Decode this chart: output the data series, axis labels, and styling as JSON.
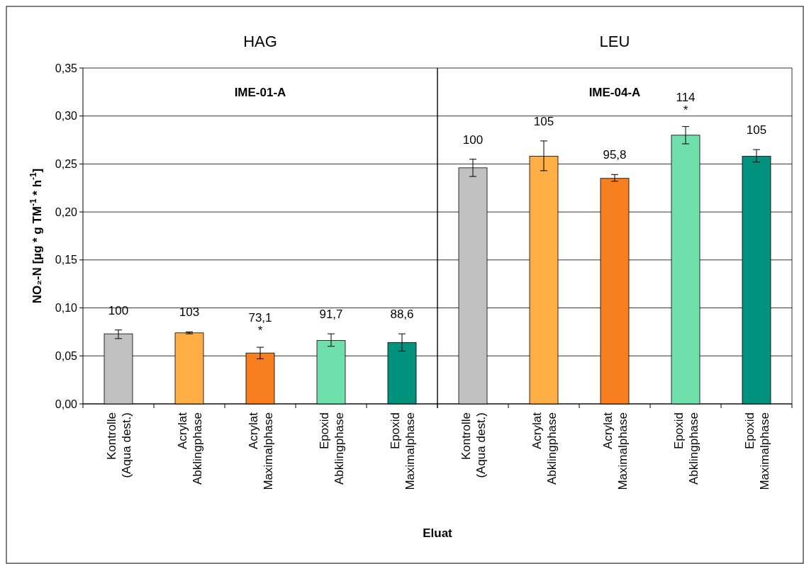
{
  "chart_data": [
    {
      "type": "bar",
      "title": "HAG",
      "subtitle": "IME-01-A",
      "ylabel": "NO₂-N [µg * g TM$^{-1}$ * h$^{-1}$]",
      "xlabel": "Eluat",
      "categories": [
        "Kontrolle\n(Aqua dest.)",
        "Acrylat\nAbklingphase",
        "Acrylat\nMaximalphase",
        "Epoxid\nAbklingphase",
        "Epoxid\nMaximalphase"
      ],
      "values": [
        0.073,
        0.074,
        0.053,
        0.066,
        0.064
      ],
      "errors": [
        [
          0.068,
          0.077
        ],
        [
          0.073,
          0.075
        ],
        [
          0.047,
          0.059
        ],
        [
          0.06,
          0.073
        ],
        [
          0.055,
          0.073
        ]
      ],
      "annotations": [
        {
          "text": "100",
          "x": "Kontrolle\n(Aqua dest.)",
          "y": 0.073
        },
        {
          "text": "103",
          "x": "Acrylat\nAbklingphase",
          "y": 0.074
        },
        {
          "text": "73,1\n*",
          "x": "Acrylat\nMaximalphase",
          "y": 0.053
        },
        {
          "text": "91,7",
          "x": "Epoxid\nAbklingphase",
          "y": 0.066
        },
        {
          "text": "88,6",
          "x": "Epoxid\nMaximalphase",
          "y": 0.064
        }
      ],
      "colors": [
        "#c0c0c0",
        "#ffad45",
        "#f97e1e",
        "#6fe0ab",
        "#00927c"
      ],
      "ylim": [
        0,
        0.35
      ],
      "yticks": [
        {
          "value": 0,
          "label": "0,00"
        },
        {
          "value": 0.05,
          "label": "0,05"
        },
        {
          "value": 0.1,
          "label": "0,10"
        },
        {
          "value": 0.15,
          "label": "0,15"
        },
        {
          "value": 0.2,
          "label": "0,20"
        },
        {
          "value": 0.25,
          "label": "0,25"
        },
        {
          "value": 0.3,
          "label": "0,30"
        },
        {
          "value": 0.35,
          "label": "0,35"
        }
      ],
      "grid": "y"
    },
    {
      "type": "bar",
      "title": "LEU",
      "subtitle": "IME-04-A",
      "categories": [
        "Kontrolle\n(Aqua dest.)",
        "Acrylat\nAbklingphase",
        "Acrylat\nMaximalphase",
        "Epoxid\nAbklingphase",
        "Epoxid\nMaximalphase"
      ],
      "values": [
        0.246,
        0.258,
        0.235,
        0.28,
        0.258
      ],
      "errors": [
        [
          0.237,
          0.255
        ],
        [
          0.243,
          0.274
        ],
        [
          0.232,
          0.239
        ],
        [
          0.271,
          0.289
        ],
        [
          0.252,
          0.265
        ]
      ],
      "annotations": [
        {
          "text": "100",
          "x": "Kontrolle\n(Aqua dest.)",
          "y": 0.246
        },
        {
          "text": "105",
          "x": "Acrylat\nAbklingphase",
          "y": 0.258
        },
        {
          "text": "95,8",
          "x": "Acrylat\nMaximalphase",
          "y": 0.235
        },
        {
          "text": "114\n*",
          "x": "Epoxid\nAbklingphase",
          "y": 0.28
        },
        {
          "text": "105",
          "x": "Epoxid\nMaximalphase",
          "y": 0.258
        }
      ],
      "colors": [
        "#c0c0c0",
        "#ffad45",
        "#f97e1e",
        "#6fe0ab",
        "#00927c"
      ],
      "ylim": [
        0,
        0.35
      ],
      "yticks": [
        0,
        0.05,
        0.1,
        0.15,
        0.2,
        0.25,
        0.3,
        0.35
      ],
      "grid": "y",
      "tick_labels": "x"
    }
  ]
}
